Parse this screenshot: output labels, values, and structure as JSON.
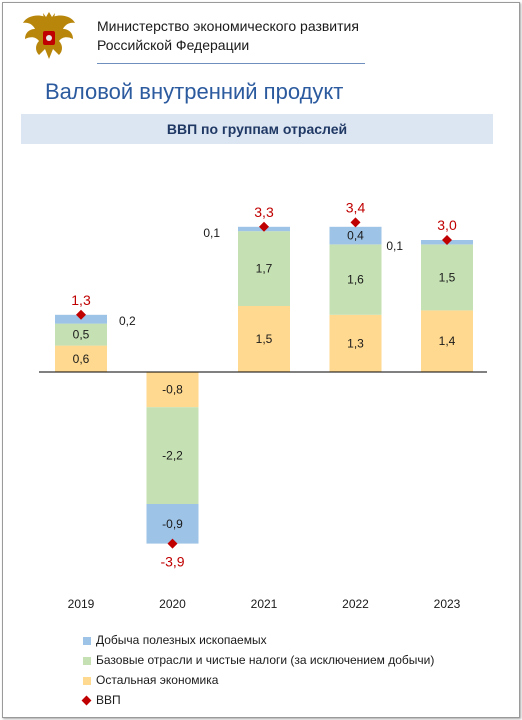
{
  "header": {
    "ministry_line1": "Министерство экономического развития",
    "ministry_line2": "Российской Федерации",
    "page_title": "Валовой внутренний продукт",
    "emblem_icon": "russian-double-headed-eagle-emblem"
  },
  "colors": {
    "mining": "#9dc3e6",
    "base": "#c5e0b3",
    "other": "#ffd98f",
    "gdp": "#c00000",
    "title": "#2b5a9e"
  },
  "chart_data": {
    "type": "bar",
    "stacked": true,
    "title": "ВВП по группам отраслей",
    "categories": [
      "2019",
      "2020",
      "2021",
      "2022",
      "2023"
    ],
    "series": [
      {
        "name": "Остальная экономика",
        "values": [
          0.6,
          -0.8,
          1.5,
          1.3,
          1.4
        ],
        "labels": [
          "0,6",
          "-0,8",
          "1,5",
          "1,3",
          "1,4"
        ]
      },
      {
        "name": "Базовые отрасли и чистые налоги (за исключением добычи)",
        "values": [
          0.5,
          -2.2,
          1.7,
          1.6,
          1.5
        ],
        "labels": [
          "0,5",
          "-2,2",
          "1,7",
          "1,6",
          "1,5"
        ]
      },
      {
        "name": "Добыча полезных ископаемых",
        "values": [
          0.2,
          -0.9,
          0.1,
          0.4,
          0.1
        ],
        "labels": [
          "0,2",
          "-0,9",
          "0,1",
          "0,4",
          "0,1"
        ]
      }
    ],
    "gdp": {
      "name": "ВВП",
      "values": [
        1.3,
        -3.9,
        3.3,
        3.4,
        3.0
      ],
      "labels": [
        "1,3",
        "-3,9",
        "3,3",
        "3,4",
        "3,0"
      ]
    },
    "ylim": [
      -4.0,
      3.6
    ],
    "grid": false,
    "legend_position": "bottom"
  },
  "legend": [
    {
      "label": "Добыча полезных ископаемых",
      "key": "mining"
    },
    {
      "label": "Базовые отрасли и чистые налоги (за исключением добычи)",
      "key": "base"
    },
    {
      "label": "Остальная экономика",
      "key": "other"
    },
    {
      "label": "ВВП",
      "key": "gdp"
    }
  ]
}
